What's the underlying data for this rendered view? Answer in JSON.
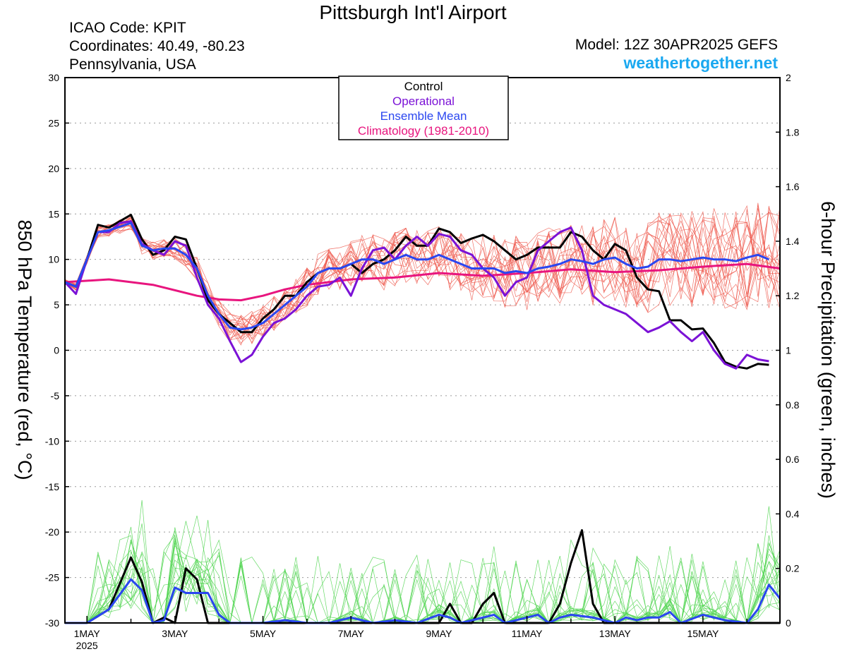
{
  "header": {
    "title": "Pittsburgh Int'l Airport",
    "icao": "ICAO Code: KPIT",
    "coordinates": "Coordinates: 40.49, -80.23",
    "location": "Pennsylvania, USA",
    "model": "Model: 12Z 30APR2025 GEFS",
    "website": "weathertogether.net"
  },
  "colors": {
    "control": "#000000",
    "operational": "#7b12d6",
    "ensemble_mean": "#2a46f0",
    "climatology": "#e8157e",
    "members": "#ef5b4f",
    "precip_members": "#55d655",
    "website": "#1aa8f0"
  },
  "chart_data": {
    "type": "line",
    "xlabel": "",
    "ylabel": "850 hPa Temperature (red, °C)",
    "ylabel_right": "6-hour Precipitation (green, inches)",
    "ylim": [
      -30,
      30
    ],
    "ylim_right": [
      0,
      2
    ],
    "yticks": [
      -30,
      -25,
      -20,
      -15,
      -10,
      -5,
      0,
      5,
      10,
      15,
      20,
      25,
      30
    ],
    "yticks_right": [
      0,
      0.2,
      0.4,
      0.6,
      0.8,
      1,
      1.2,
      1.4,
      1.6,
      1.8,
      2
    ],
    "xlim": [
      0.5,
      16.75
    ],
    "xticks": [
      {
        "x": 1,
        "label": "1MAY",
        "sub": "2025"
      },
      {
        "x": 3,
        "label": "3MAY",
        "sub": ""
      },
      {
        "x": 5,
        "label": "5MAY",
        "sub": ""
      },
      {
        "x": 7,
        "label": "7MAY",
        "sub": ""
      },
      {
        "x": 9,
        "label": "9MAY",
        "sub": ""
      },
      {
        "x": 11,
        "label": "11MAY",
        "sub": ""
      },
      {
        "x": 13,
        "label": "13MAY",
        "sub": ""
      },
      {
        "x": 15,
        "label": "15MAY",
        "sub": ""
      }
    ],
    "grid": "horizontal dotted",
    "legend": {
      "position": "top-center",
      "entries": [
        "Control",
        "Operational",
        "Ensemble Mean",
        "Climatology (1981-2010)"
      ]
    },
    "series": [
      {
        "name": "Control",
        "axis": "left",
        "color": "#000000",
        "points": [
          [
            0.5,
            7.5
          ],
          [
            0.75,
            7
          ],
          [
            1,
            10
          ],
          [
            1.25,
            13.8
          ],
          [
            1.5,
            13.5
          ],
          [
            1.75,
            14.2
          ],
          [
            2,
            14.9
          ],
          [
            2.25,
            12.2
          ],
          [
            2.5,
            10.5
          ],
          [
            2.75,
            11
          ],
          [
            3,
            12.5
          ],
          [
            3.25,
            12.2
          ],
          [
            3.5,
            9
          ],
          [
            3.75,
            5.5
          ],
          [
            4,
            4
          ],
          [
            4.25,
            3
          ],
          [
            4.5,
            2
          ],
          [
            4.75,
            2
          ],
          [
            5,
            3.5
          ],
          [
            5.25,
            4.5
          ],
          [
            5.5,
            6
          ],
          [
            5.75,
            6
          ],
          [
            6,
            7.5
          ],
          [
            6.25,
            8.5
          ],
          [
            6.5,
            9
          ],
          [
            6.75,
            9
          ],
          [
            7,
            9.5
          ],
          [
            7.25,
            8.5
          ],
          [
            7.5,
            9.5
          ],
          [
            7.75,
            10
          ],
          [
            8,
            11
          ],
          [
            8.25,
            12.5
          ],
          [
            8.5,
            11.5
          ],
          [
            8.75,
            11.5
          ],
          [
            9,
            13.4
          ],
          [
            9.25,
            13
          ],
          [
            9.5,
            11.8
          ],
          [
            9.75,
            12.3
          ],
          [
            10,
            12.7
          ],
          [
            10.25,
            12
          ],
          [
            10.5,
            11
          ],
          [
            10.75,
            10
          ],
          [
            11,
            10.5
          ],
          [
            11.25,
            11.3
          ],
          [
            11.5,
            11.3
          ],
          [
            11.75,
            11.3
          ],
          [
            12,
            13
          ],
          [
            12.25,
            12.5
          ],
          [
            12.5,
            11
          ],
          [
            12.75,
            10
          ],
          [
            13,
            11.7
          ],
          [
            13.25,
            11
          ],
          [
            13.5,
            8
          ],
          [
            13.75,
            6.7
          ],
          [
            14,
            6.5
          ],
          [
            14.25,
            3.3
          ],
          [
            14.5,
            3.3
          ],
          [
            14.75,
            2.3
          ],
          [
            15,
            2.4
          ],
          [
            15.25,
            0.8
          ],
          [
            15.5,
            -1.3
          ],
          [
            15.75,
            -1.8
          ],
          [
            16,
            -2
          ],
          [
            16.25,
            -1.5
          ],
          [
            16.5,
            -1.6
          ]
        ]
      },
      {
        "name": "Operational",
        "axis": "left",
        "color": "#7b12d6",
        "points": [
          [
            0.5,
            7.5
          ],
          [
            0.75,
            6.2
          ],
          [
            1,
            10
          ],
          [
            1.25,
            13
          ],
          [
            1.5,
            13
          ],
          [
            1.75,
            14
          ],
          [
            2,
            14.2
          ],
          [
            2.25,
            11.7
          ],
          [
            2.5,
            11
          ],
          [
            2.75,
            10.5
          ],
          [
            3,
            12
          ],
          [
            3.25,
            11.5
          ],
          [
            3.5,
            8
          ],
          [
            3.75,
            5
          ],
          [
            4,
            3.5
          ],
          [
            4.25,
            1
          ],
          [
            4.5,
            -1.3
          ],
          [
            4.75,
            -0.5
          ],
          [
            5,
            1.5
          ],
          [
            5.25,
            3
          ],
          [
            5.5,
            3.5
          ],
          [
            5.75,
            4.5
          ],
          [
            6,
            6
          ],
          [
            6.25,
            7
          ],
          [
            6.5,
            7.2
          ],
          [
            6.75,
            8
          ],
          [
            7,
            6
          ],
          [
            7.25,
            9
          ],
          [
            7.5,
            11
          ],
          [
            7.75,
            11.3
          ],
          [
            8,
            10
          ],
          [
            8.25,
            11.5
          ],
          [
            8.5,
            12.5
          ],
          [
            8.75,
            11.5
          ],
          [
            9,
            12.8
          ],
          [
            9.25,
            12.5
          ],
          [
            9.5,
            11
          ],
          [
            9.75,
            10.5
          ],
          [
            10,
            9
          ],
          [
            10.25,
            8
          ],
          [
            10.5,
            6
          ],
          [
            10.75,
            7.5
          ],
          [
            11,
            8
          ],
          [
            11.25,
            11
          ],
          [
            11.5,
            12
          ],
          [
            11.75,
            13
          ],
          [
            12,
            13.5
          ],
          [
            12.25,
            11
          ],
          [
            12.5,
            6
          ],
          [
            12.75,
            5
          ],
          [
            13,
            4.5
          ],
          [
            13.25,
            4
          ],
          [
            13.5,
            3
          ],
          [
            13.75,
            2
          ],
          [
            14,
            2.5
          ],
          [
            14.25,
            3.2
          ],
          [
            14.5,
            2
          ],
          [
            14.75,
            1
          ],
          [
            15,
            2
          ],
          [
            15.25,
            0
          ],
          [
            15.5,
            -1.5
          ],
          [
            15.75,
            -2
          ],
          [
            16,
            -0.5
          ],
          [
            16.25,
            -1
          ],
          [
            16.5,
            -1.2
          ]
        ]
      },
      {
        "name": "Ensemble Mean",
        "axis": "left",
        "color": "#2a46f0",
        "points": [
          [
            0.5,
            7.5
          ],
          [
            0.75,
            7
          ],
          [
            1,
            10
          ],
          [
            1.25,
            13
          ],
          [
            1.5,
            13.2
          ],
          [
            1.75,
            13.6
          ],
          [
            2,
            14
          ],
          [
            2.25,
            11.5
          ],
          [
            2.5,
            11
          ],
          [
            2.75,
            11.2
          ],
          [
            3,
            11.2
          ],
          [
            3.25,
            10.5
          ],
          [
            3.5,
            9
          ],
          [
            3.75,
            6
          ],
          [
            4,
            4
          ],
          [
            4.25,
            2.5
          ],
          [
            4.5,
            2.3
          ],
          [
            4.75,
            2.5
          ],
          [
            5,
            3
          ],
          [
            5.25,
            4
          ],
          [
            5.5,
            5
          ],
          [
            5.75,
            6
          ],
          [
            6,
            7
          ],
          [
            6.25,
            8.5
          ],
          [
            6.5,
            9
          ],
          [
            6.75,
            9
          ],
          [
            7,
            9.5
          ],
          [
            7.25,
            10
          ],
          [
            7.5,
            10
          ],
          [
            7.75,
            9.5
          ],
          [
            8,
            10
          ],
          [
            8.25,
            10.5
          ],
          [
            8.5,
            10
          ],
          [
            8.75,
            10
          ],
          [
            9,
            10.5
          ],
          [
            9.25,
            10
          ],
          [
            9.5,
            9.5
          ],
          [
            9.75,
            9
          ],
          [
            10,
            9
          ],
          [
            10.25,
            9
          ],
          [
            10.5,
            8.5
          ],
          [
            10.75,
            8.7
          ],
          [
            11,
            8.5
          ],
          [
            11.25,
            9
          ],
          [
            11.5,
            9.2
          ],
          [
            11.75,
            9.5
          ],
          [
            12,
            10
          ],
          [
            12.25,
            9.8
          ],
          [
            12.5,
            9.5
          ],
          [
            12.75,
            10
          ],
          [
            13,
            10.2
          ],
          [
            13.25,
            9.5
          ],
          [
            13.5,
            9
          ],
          [
            13.75,
            9.2
          ],
          [
            14,
            10
          ],
          [
            14.25,
            10
          ],
          [
            14.5,
            9.8
          ],
          [
            14.75,
            10
          ],
          [
            15,
            10.2
          ],
          [
            15.25,
            10
          ],
          [
            15.5,
            10
          ],
          [
            15.75,
            9.8
          ],
          [
            16,
            10.2
          ],
          [
            16.25,
            10.5
          ],
          [
            16.5,
            10
          ]
        ]
      },
      {
        "name": "Climatology (1981-2010)",
        "axis": "left",
        "color": "#e8157e",
        "points": [
          [
            0.5,
            7.5
          ],
          [
            1.5,
            7.8
          ],
          [
            2.5,
            7.2
          ],
          [
            3.5,
            6
          ],
          [
            4,
            5.6
          ],
          [
            4.5,
            5.5
          ],
          [
            5,
            6
          ],
          [
            5.5,
            6.7
          ],
          [
            6,
            7.2
          ],
          [
            7,
            7.8
          ],
          [
            8,
            8
          ],
          [
            9,
            8.5
          ],
          [
            10,
            8.2
          ],
          [
            11,
            8.5
          ],
          [
            12,
            8.9
          ],
          [
            13,
            8.6
          ],
          [
            14,
            8.8
          ],
          [
            15,
            9.2
          ],
          [
            16,
            9.5
          ],
          [
            16.75,
            9
          ]
        ]
      },
      {
        "name": "Control",
        "axis": "right",
        "color": "#000000",
        "points": [
          [
            0.5,
            0
          ],
          [
            1,
            0
          ],
          [
            1.5,
            0.05
          ],
          [
            2,
            0.24
          ],
          [
            2.25,
            0.15
          ],
          [
            2.5,
            0
          ],
          [
            2.75,
            0.02
          ],
          [
            3,
            0
          ],
          [
            3.25,
            0.2
          ],
          [
            3.5,
            0.16
          ],
          [
            3.75,
            0
          ],
          [
            4,
            0
          ],
          [
            5,
            0
          ],
          [
            6,
            0
          ],
          [
            7,
            0
          ],
          [
            8,
            0
          ],
          [
            9,
            0
          ],
          [
            9.25,
            0.07
          ],
          [
            9.5,
            0
          ],
          [
            9.75,
            0
          ],
          [
            10,
            0.07
          ],
          [
            10.25,
            0.11
          ],
          [
            10.5,
            0
          ],
          [
            11,
            0
          ],
          [
            11.5,
            0
          ],
          [
            11.75,
            0.07
          ],
          [
            12,
            0.22
          ],
          [
            12.25,
            0.34
          ],
          [
            12.5,
            0.07
          ],
          [
            12.75,
            0
          ],
          [
            13,
            0
          ],
          [
            14,
            0
          ],
          [
            15,
            0
          ],
          [
            16,
            0
          ],
          [
            16.75,
            0
          ]
        ]
      },
      {
        "name": "Ensemble Mean",
        "axis": "right",
        "color": "#2a46f0",
        "points": [
          [
            0.5,
            0
          ],
          [
            1,
            0
          ],
          [
            1.5,
            0.05
          ],
          [
            2,
            0.16
          ],
          [
            2.25,
            0.12
          ],
          [
            2.5,
            0
          ],
          [
            2.75,
            0.01
          ],
          [
            3,
            0.13
          ],
          [
            3.25,
            0.11
          ],
          [
            3.5,
            0.11
          ],
          [
            3.75,
            0.11
          ],
          [
            4,
            0.03
          ],
          [
            4.25,
            0
          ],
          [
            5,
            0
          ],
          [
            5.5,
            0.01
          ],
          [
            6,
            0
          ],
          [
            6.5,
            0
          ],
          [
            7,
            0.02
          ],
          [
            7.5,
            0
          ],
          [
            8,
            0.01
          ],
          [
            8.5,
            0
          ],
          [
            9,
            0.03
          ],
          [
            9.25,
            0.02
          ],
          [
            9.5,
            0
          ],
          [
            10,
            0.02
          ],
          [
            10.25,
            0.03
          ],
          [
            10.5,
            0
          ],
          [
            11,
            0.02
          ],
          [
            11.25,
            0.03
          ],
          [
            11.5,
            0
          ],
          [
            11.75,
            0.02
          ],
          [
            12,
            0.03
          ],
          [
            12.5,
            0.02
          ],
          [
            13,
            0
          ],
          [
            13.25,
            0.02
          ],
          [
            13.5,
            0.01
          ],
          [
            13.75,
            0.02
          ],
          [
            14,
            0.02
          ],
          [
            14.25,
            0.04
          ],
          [
            14.5,
            0
          ],
          [
            15,
            0.03
          ],
          [
            15.25,
            0.02
          ],
          [
            15.5,
            0.01
          ],
          [
            16,
            0
          ],
          [
            16.25,
            0.05
          ],
          [
            16.5,
            0.14
          ],
          [
            16.75,
            0.09
          ]
        ]
      }
    ]
  }
}
